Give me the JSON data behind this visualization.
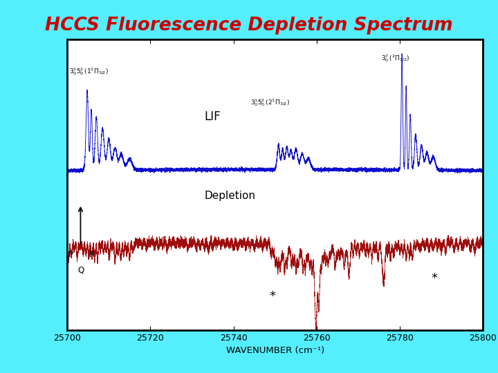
{
  "title": "HCCS Fluorescence Depletion Spectrum",
  "title_color": "#CC0000",
  "title_fontsize": 19,
  "background_outer": "#55EEFF",
  "background_inner": "#FFFFFF",
  "xlabel": "WAVENUMBER (cm⁻¹)",
  "xmin": 25700,
  "xmax": 25800,
  "xticks": [
    25700,
    25720,
    25740,
    25760,
    25780,
    25800
  ],
  "lif_label": "LIF",
  "depletion_label": "Depletion",
  "lif_color": "#0000CC",
  "depletion_color": "#990000",
  "lif_baseline": 0.48,
  "lif_scale": 0.42,
  "depl_baseline": 0.22,
  "depl_scale": 0.28
}
